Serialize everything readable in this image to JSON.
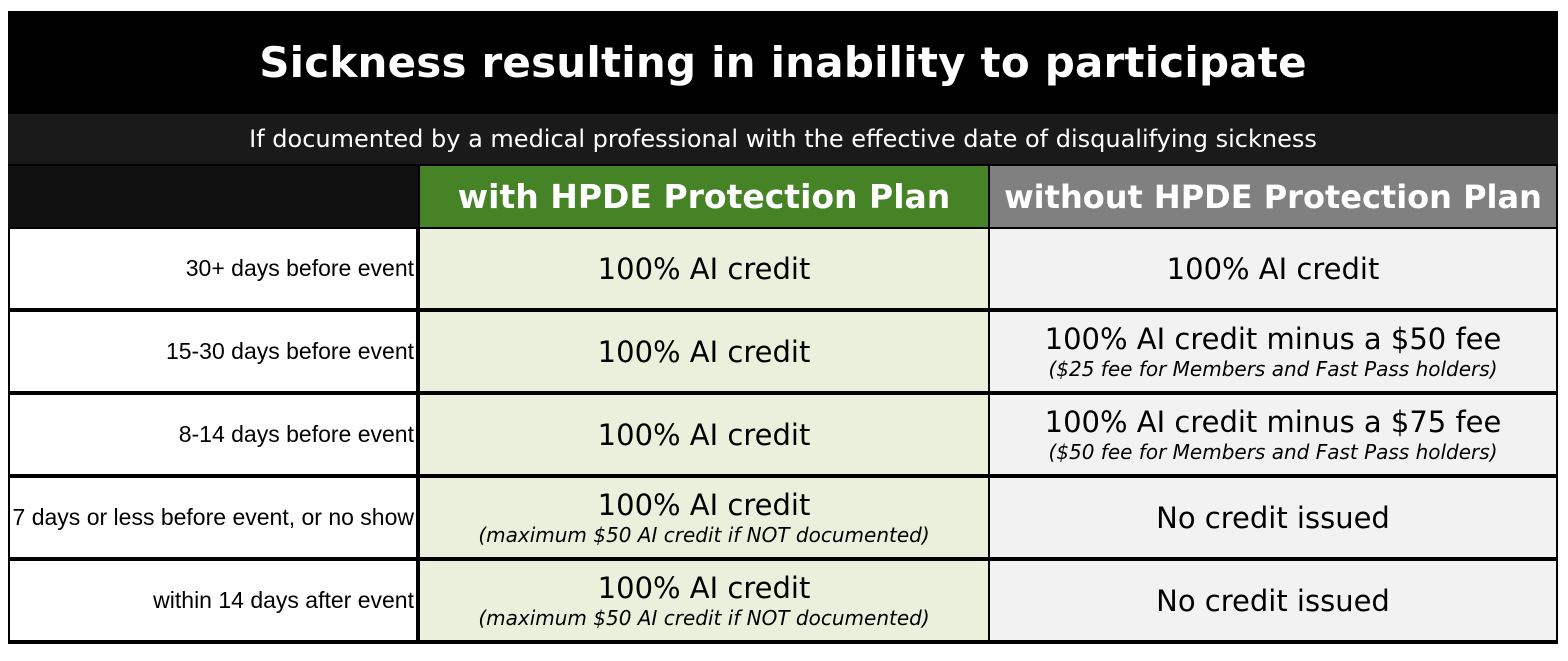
{
  "title": "Sickness resulting in inability to participate",
  "subtitle": "If documented by a medical professional with the effective date of disqualifying sickness",
  "columns": {
    "with": "with HPDE Protection Plan",
    "without": "without HPDE Protection Plan"
  },
  "colors": {
    "with_header": "#468226",
    "without_header": "#808080",
    "with_cell": "#ebf0dc",
    "without_cell": "#f2f2f2"
  },
  "rows": [
    {
      "label": "30+ days before event",
      "with_main": "100% AI credit",
      "with_note": "",
      "without_main": "100% AI credit",
      "without_note": ""
    },
    {
      "label": "15-30 days before event",
      "with_main": "100% AI credit",
      "with_note": "",
      "without_main": "100% AI credit minus a $50 fee",
      "without_note": "($25 fee for Members and Fast Pass holders)"
    },
    {
      "label": "8-14 days before event",
      "with_main": "100% AI credit",
      "with_note": "",
      "without_main": "100% AI credit minus a $75 fee",
      "without_note": "($50 fee for Members and Fast Pass holders)"
    },
    {
      "label": "7 days or less before event, or no show",
      "with_main": "100% AI credit",
      "with_note": "(maximum $50 AI credit if NOT documented)",
      "without_main": "No credit issued",
      "without_note": ""
    },
    {
      "label": "within 14 days after event",
      "with_main": "100% AI credit",
      "with_note": "(maximum $50 AI credit if NOT documented)",
      "without_main": "No credit issued",
      "without_note": ""
    }
  ]
}
